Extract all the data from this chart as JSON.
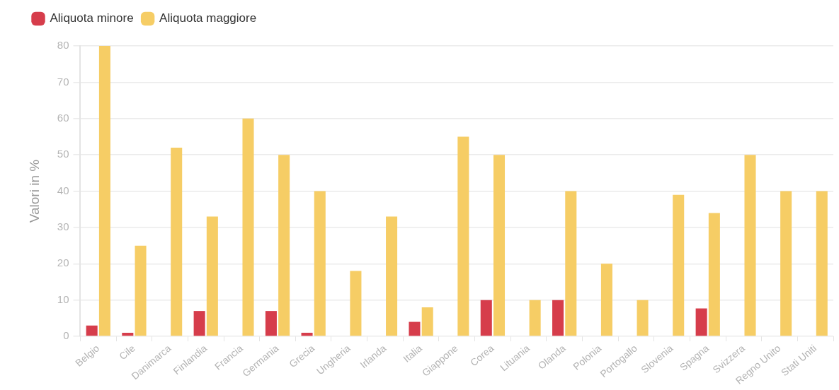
{
  "chart_data": {
    "type": "bar",
    "ylabel": "Valori in %",
    "categories": [
      "Belgio",
      "Cile",
      "Danimarca",
      "Finlandia",
      "Francia",
      "Germania",
      "Grecia",
      "Ungheria",
      "Irlanda",
      "Italia",
      "Giappone",
      "Corea",
      "Lituania",
      "Olanda",
      "Polonia",
      "Portogallo",
      "Slovenia",
      "Spagna",
      "Svizzera",
      "Regno Unito",
      "Stati Uniti"
    ],
    "series": [
      {
        "name": "Aliquota minore",
        "color": "#d63d4b",
        "values": [
          3,
          1,
          null,
          7,
          null,
          7,
          1,
          null,
          null,
          4,
          null,
          10,
          null,
          10,
          null,
          null,
          null,
          7.7,
          null,
          null,
          null
        ]
      },
      {
        "name": "Aliquota maggiore",
        "color": "#f6cd65",
        "values": [
          80,
          25,
          52,
          33,
          60,
          50,
          40,
          18,
          33,
          8,
          55,
          50,
          10,
          40,
          20,
          10,
          39,
          34,
          50,
          40,
          40
        ]
      }
    ],
    "ylim": [
      0,
      80
    ],
    "yticks": [
      0,
      10,
      20,
      30,
      40,
      50,
      60,
      70,
      80
    ],
    "grid": "y",
    "legend": "top left"
  }
}
